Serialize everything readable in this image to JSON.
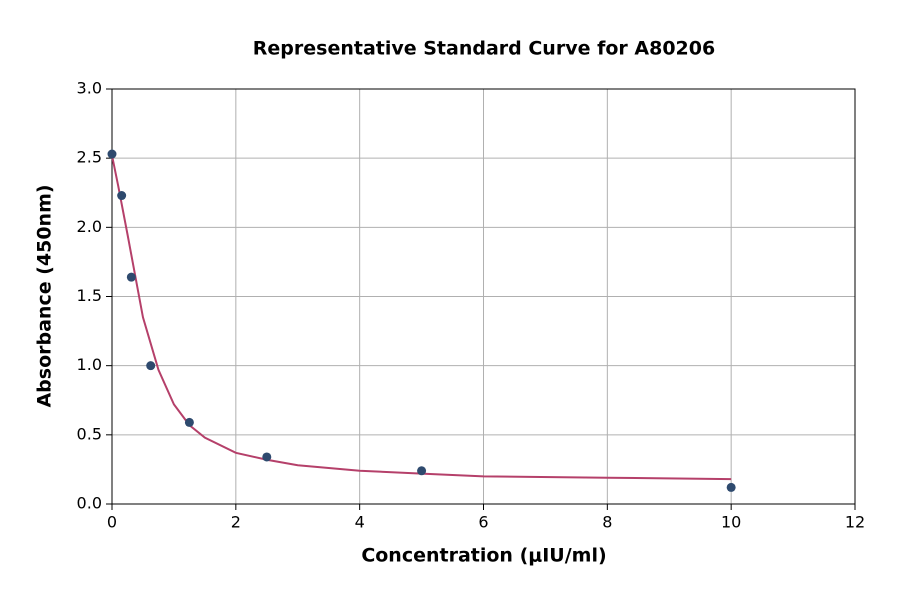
{
  "chart_data": {
    "type": "scatter",
    "title": "Representative Standard Curve for A80206",
    "x_label": "Concentration (μIU/ml)",
    "y_label": "Absorbance (450nm)",
    "xlim": [
      0,
      12
    ],
    "ylim": [
      0,
      3
    ],
    "xticks": [
      0,
      2,
      4,
      6,
      8,
      10,
      12
    ],
    "yticks": [
      {
        "value": 0,
        "label": "0.0"
      },
      0.5,
      {
        "value": 1,
        "label": "1.0"
      },
      1.5,
      {
        "value": 2,
        "label": "2.0"
      },
      2.5,
      {
        "value": 3,
        "label": "3.0"
      }
    ],
    "grid": true,
    "series": [
      {
        "type": "line",
        "color": "#b5406a",
        "x": [
          0,
          0.1,
          0.25,
          0.5,
          0.75,
          1,
          1.25,
          1.5,
          2,
          2.5,
          3,
          4,
          5,
          6,
          8,
          10
        ],
        "values": [
          2.52,
          2.3,
          1.95,
          1.35,
          0.97,
          0.72,
          0.57,
          0.48,
          0.37,
          0.32,
          0.28,
          0.24,
          0.22,
          0.2,
          0.19,
          0.18
        ]
      },
      {
        "type": "scatter",
        "color": "#2e4a6e",
        "x": [
          0,
          0.156,
          0.3125,
          0.625,
          1.25,
          2.5,
          5,
          10
        ],
        "values": [
          2.53,
          2.23,
          1.64,
          1.0,
          0.59,
          0.34,
          0.24,
          0.12
        ]
      }
    ]
  }
}
